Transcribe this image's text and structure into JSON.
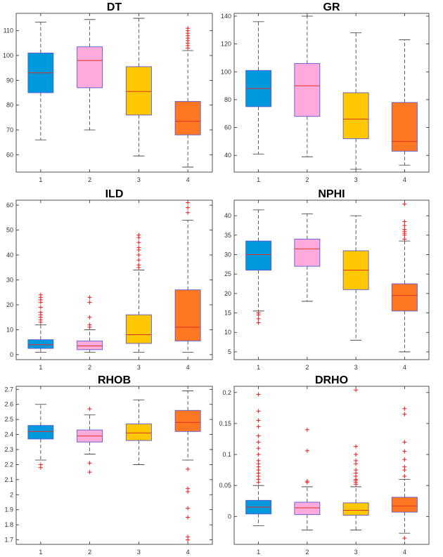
{
  "chart_data": [
    {
      "type": "box",
      "title": "DT",
      "categories": [
        "1",
        "2",
        "3",
        "4"
      ],
      "yticks": [
        60,
        70,
        80,
        90,
        100,
        110
      ],
      "ylim": [
        53,
        117
      ],
      "colors": [
        "#0099dd",
        "#ffaadd",
        "#ffc800",
        "#ff7722"
      ],
      "boxes": [
        {
          "q1": 85,
          "median": 93,
          "q3": 101,
          "whislo": 66,
          "whishi": 113.5,
          "fliers": []
        },
        {
          "q1": 87,
          "median": 98,
          "q3": 103.5,
          "whislo": 70,
          "whishi": 114.5,
          "fliers": []
        },
        {
          "q1": 76,
          "median": 85.5,
          "q3": 95.5,
          "whislo": 59.5,
          "whishi": 115,
          "fliers": []
        },
        {
          "q1": 68,
          "median": 73.5,
          "q3": 81.5,
          "whislo": 55,
          "whishi": 102,
          "fliers": [
            103,
            104,
            105,
            106,
            107,
            108,
            109,
            110,
            111
          ]
        }
      ]
    },
    {
      "type": "box",
      "title": "GR",
      "categories": [
        "1",
        "2",
        "3",
        "4"
      ],
      "yticks": [
        40,
        60,
        80,
        100,
        120,
        140
      ],
      "ylim": [
        28,
        142
      ],
      "colors": [
        "#0099dd",
        "#ffaadd",
        "#ffc800",
        "#ff7722"
      ],
      "boxes": [
        {
          "q1": 75,
          "median": 88,
          "q3": 101,
          "whislo": 41,
          "whishi": 136,
          "fliers": []
        },
        {
          "q1": 68,
          "median": 90,
          "q3": 106,
          "whislo": 39,
          "whishi": 140,
          "fliers": []
        },
        {
          "q1": 52,
          "median": 66,
          "q3": 85,
          "whislo": 30,
          "whishi": 128,
          "fliers": []
        },
        {
          "q1": 43,
          "median": 50,
          "q3": 78,
          "whislo": 33,
          "whishi": 123,
          "fliers": []
        }
      ]
    },
    {
      "type": "box",
      "title": "ILD",
      "categories": [
        "1",
        "2",
        "3",
        "4"
      ],
      "yticks": [
        0,
        10,
        20,
        30,
        40,
        50,
        60
      ],
      "ylim": [
        -2,
        62
      ],
      "colors": [
        "#0099dd",
        "#ffaadd",
        "#ffc800",
        "#ff7722"
      ],
      "boxes": [
        {
          "q1": 2.5,
          "median": 4,
          "q3": 6,
          "whislo": 1,
          "whishi": 12,
          "fliers": [
            13,
            14,
            15,
            16,
            17,
            19,
            21,
            22,
            23,
            24
          ]
        },
        {
          "q1": 2,
          "median": 3.5,
          "q3": 5.5,
          "whislo": 1,
          "whishi": 10,
          "fliers": [
            11,
            12,
            15,
            21,
            23
          ]
        },
        {
          "q1": 4.5,
          "median": 8,
          "q3": 16,
          "whislo": 1,
          "whishi": 34,
          "fliers": [
            35,
            36,
            38,
            40,
            42,
            43,
            45,
            47,
            48
          ]
        },
        {
          "q1": 5.5,
          "median": 11,
          "q3": 26,
          "whislo": 1,
          "whishi": 54,
          "fliers": [
            57,
            59,
            61
          ]
        }
      ]
    },
    {
      "type": "box",
      "title": "NPHI",
      "categories": [
        "1",
        "2",
        "3",
        "4"
      ],
      "yticks": [
        5,
        10,
        15,
        20,
        25,
        30,
        35,
        40
      ],
      "ylim": [
        3,
        44
      ],
      "colors": [
        "#0099dd",
        "#ffaadd",
        "#ffc800",
        "#ff7722"
      ],
      "boxes": [
        {
          "q1": 26,
          "median": 30,
          "q3": 33.5,
          "whislo": 15.5,
          "whishi": 41.5,
          "fliers": [
            12.5,
            13.5,
            14.5,
            15
          ]
        },
        {
          "q1": 27,
          "median": 31.5,
          "q3": 34,
          "whislo": 18,
          "whishi": 40.5,
          "fliers": []
        },
        {
          "q1": 21,
          "median": 26,
          "q3": 31,
          "whislo": 8,
          "whishi": 40,
          "fliers": []
        },
        {
          "q1": 15.5,
          "median": 19.5,
          "q3": 22.5,
          "whislo": 5,
          "whishi": 33.5,
          "fliers": [
            34,
            35,
            35.5,
            36,
            36.5,
            37.5,
            38.5,
            43
          ]
        }
      ]
    },
    {
      "type": "box",
      "title": "RHOB",
      "categories": [
        "1",
        "2",
        "3",
        "4"
      ],
      "yticks": [
        1.7,
        1.8,
        1.9,
        2.0,
        2.1,
        2.2,
        2.3,
        2.4,
        2.5,
        2.6,
        2.7
      ],
      "ytick_labels": [
        "1.7",
        "1.8",
        "1.9",
        "2",
        "2.1",
        "2.2",
        "2.3",
        "2.4",
        "2.5",
        "2.6",
        "2.7"
      ],
      "ylim": [
        1.67,
        2.72
      ],
      "colors": [
        "#0099dd",
        "#ffaadd",
        "#ffc800",
        "#ff7722"
      ],
      "boxes": [
        {
          "q1": 2.37,
          "median": 2.42,
          "q3": 2.46,
          "whislo": 2.23,
          "whishi": 2.6,
          "fliers": [
            2.18,
            2.2
          ]
        },
        {
          "q1": 2.35,
          "median": 2.39,
          "q3": 2.43,
          "whislo": 2.27,
          "whishi": 2.53,
          "fliers": [
            2.15,
            2.21,
            2.57
          ]
        },
        {
          "q1": 2.36,
          "median": 2.41,
          "q3": 2.47,
          "whislo": 2.2,
          "whishi": 2.63,
          "fliers": []
        },
        {
          "q1": 2.42,
          "median": 2.48,
          "q3": 2.56,
          "whislo": 2.23,
          "whishi": 2.69,
          "fliers": [
            1.7,
            1.72,
            1.85,
            1.91,
            2.02,
            2.04,
            2.17
          ]
        }
      ]
    },
    {
      "type": "box",
      "title": "DRHO",
      "categories": [
        "1",
        "2",
        "3",
        "4"
      ],
      "yticks": [
        0,
        0.05,
        0.1,
        0.15,
        0.2
      ],
      "ytick_labels": [
        "0",
        "0.05",
        "0.1",
        "0.15",
        "0.2"
      ],
      "ylim": [
        -0.045,
        0.21
      ],
      "colors": [
        "#0099dd",
        "#ffaadd",
        "#ffc800",
        "#ff7722"
      ],
      "boxes": [
        {
          "q1": 0.004,
          "median": 0.015,
          "q3": 0.026,
          "whislo": -0.015,
          "whishi": 0.05,
          "fliers": [
            0.055,
            0.06,
            0.065,
            0.07,
            0.075,
            0.08,
            0.085,
            0.09,
            0.1,
            0.11,
            0.12,
            0.13,
            0.145,
            0.155,
            0.17,
            0.197
          ]
        },
        {
          "q1": 0.003,
          "median": 0.014,
          "q3": 0.023,
          "whislo": -0.022,
          "whishi": 0.048,
          "fliers": [
            0.055,
            0.057,
            0.106,
            0.14
          ]
        },
        {
          "q1": 0.002,
          "median": 0.01,
          "q3": 0.022,
          "whislo": -0.022,
          "whishi": 0.048,
          "fliers": [
            0.052,
            0.055,
            0.058,
            0.06,
            0.065,
            0.07,
            0.075,
            0.085,
            0.09,
            0.1,
            0.113,
            0.204
          ]
        },
        {
          "q1": 0.007,
          "median": 0.017,
          "q3": 0.031,
          "whislo": -0.027,
          "whishi": 0.06,
          "fliers": [
            -0.035,
            0.065,
            0.075,
            0.08,
            0.092,
            0.105,
            0.12,
            0.165,
            0.174
          ]
        }
      ]
    }
  ]
}
